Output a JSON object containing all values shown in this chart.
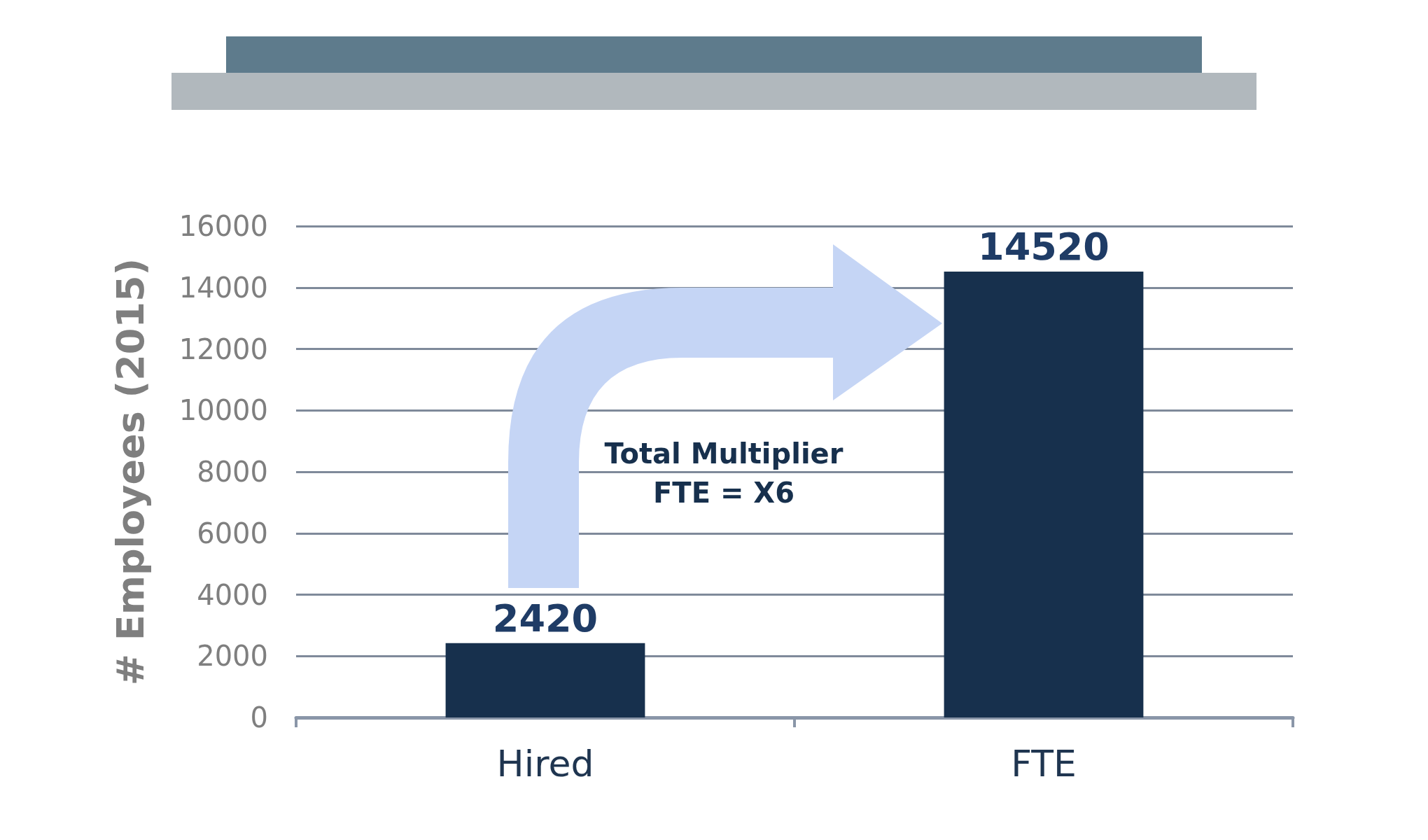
{
  "chart_data": {
    "type": "bar",
    "ylabel": "# Employees (2015)",
    "categories": [
      "Hired",
      "FTE"
    ],
    "values": [
      2420,
      14520
    ],
    "color": "#17304d",
    "ylim": [
      0,
      16000
    ],
    "yticks": [
      0,
      2000,
      4000,
      6000,
      8000,
      10000,
      12000,
      14000,
      16000
    ],
    "grid": "y",
    "data_labels": true,
    "annotations": [
      "Total Multiplier\nFTE = X6"
    ]
  }
}
